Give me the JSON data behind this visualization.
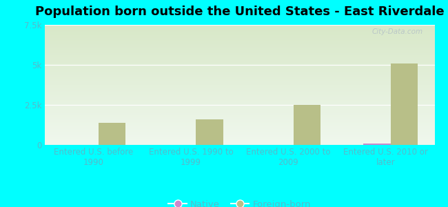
{
  "title": "Population born outside the United States - East Riverdale",
  "background_color": "#00FFFF",
  "plot_bg_top": "#d8e8c8",
  "plot_bg_bottom": "#f0f8ee",
  "categories": [
    "Entered U.S. before\n1990",
    "Entered U.S. 1990 to\n1999",
    "Entered U.S. 2000 to\n2009",
    "Entered U.S. 2010 or\nlater"
  ],
  "native_values": [
    0,
    0,
    12,
    85
  ],
  "foreign_values": [
    1400,
    1600,
    2500,
    5100
  ],
  "native_color": "#cc88cc",
  "foreign_color": "#b8bf88",
  "ylim": [
    0,
    7500
  ],
  "yticks": [
    0,
    2500,
    5000,
    7500
  ],
  "ytick_labels": [
    "0",
    "2.5k",
    "5k",
    "7.5k"
  ],
  "bar_width": 0.28,
  "title_fontsize": 13,
  "tick_fontsize": 8.5,
  "legend_fontsize": 9.5,
  "watermark": "City-Data.com",
  "label_color": "#55bbcc",
  "ytick_color": "#55bbcc",
  "grid_color": "#ffffff"
}
